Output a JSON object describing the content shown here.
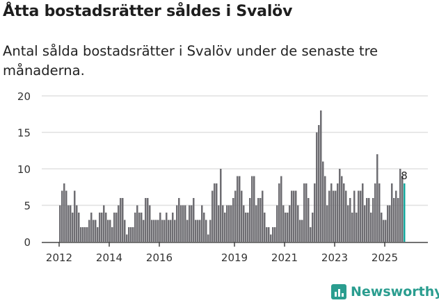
{
  "title": "Åtta bostadsrätter såldes i Svalöv",
  "subtitle": "Antal sålda bostadsrätter i Svalöv under de senaste tre månaderna.",
  "logo": "Newsworthy",
  "colors": {
    "bar": "#6e6d72",
    "highlight": "#13a89e",
    "grid": "#e0e0e0",
    "axis": "#444444"
  },
  "chart_data": {
    "type": "bar",
    "title": "Åtta bostadsrätter såldes i Svalöv",
    "xlabel": "",
    "ylabel": "",
    "ylim": [
      0,
      20
    ],
    "yticks": [
      "0",
      "5",
      "10",
      "15",
      "20"
    ],
    "xticks": [
      "2012",
      "2014",
      "2016",
      "2019",
      "2021",
      "2023",
      "2025"
    ],
    "start_month": "2012-01",
    "frequency": "monthly",
    "values": [
      5,
      7,
      8,
      7,
      5,
      5,
      4,
      7,
      5,
      4,
      2,
      2,
      2,
      2,
      3,
      4,
      3,
      3,
      2,
      4,
      4,
      5,
      4,
      3,
      3,
      2,
      4,
      4,
      5,
      6,
      6,
      3,
      1,
      2,
      2,
      2,
      4,
      5,
      4,
      4,
      3,
      6,
      6,
      5,
      3,
      3,
      3,
      3,
      4,
      3,
      3,
      4,
      3,
      3,
      4,
      3,
      5,
      6,
      5,
      5,
      5,
      3,
      5,
      5,
      6,
      3,
      3,
      3,
      5,
      4,
      3,
      1,
      3,
      7,
      8,
      8,
      5,
      10,
      5,
      4,
      5,
      5,
      5,
      6,
      7,
      9,
      9,
      7,
      5,
      4,
      4,
      6,
      9,
      9,
      5,
      6,
      6,
      7,
      4,
      2,
      2,
      1,
      2,
      2,
      5,
      8,
      9,
      5,
      4,
      4,
      5,
      7,
      7,
      7,
      5,
      3,
      3,
      8,
      8,
      6,
      2,
      4,
      8,
      15,
      16,
      18,
      11,
      9,
      5,
      7,
      8,
      7,
      7,
      8,
      10,
      9,
      8,
      7,
      5,
      6,
      4,
      7,
      4,
      7,
      7,
      8,
      5,
      6,
      6,
      4,
      6,
      8,
      12,
      8,
      4,
      3,
      3,
      5,
      5,
      8,
      6,
      7,
      6,
      10,
      9,
      8
    ],
    "highlight_last": true,
    "data_label": "8",
    "grid": true
  }
}
